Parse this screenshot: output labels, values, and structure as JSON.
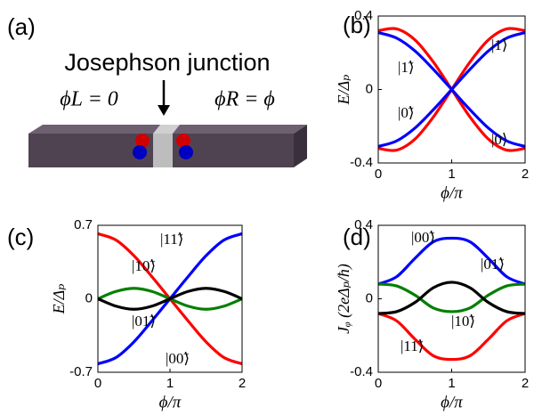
{
  "diagram": {
    "panel_label": "(a)",
    "title": "Josephson junction",
    "left_phase": "ϕL = 0",
    "right_phase": "ϕR = ϕ"
  },
  "chart_data": [
    {
      "type": "line",
      "panel_label": "(b)",
      "xlabel": "ϕ/π",
      "ylabel": "E/Δₚ",
      "x": [
        0,
        0.25,
        0.5,
        0.75,
        1,
        1.25,
        1.5,
        1.75,
        2
      ],
      "xlim": [
        0,
        2
      ],
      "xticks": [
        0,
        1,
        2
      ],
      "ylim": [
        -0.4,
        0.4
      ],
      "yticks": [
        -0.4,
        0,
        0.4
      ],
      "series": [
        {
          "color": "#ff0000",
          "values": [
            0.32,
            0.33,
            0.27,
            0.15,
            0,
            -0.15,
            -0.27,
            -0.33,
            -0.32
          ]
        },
        {
          "color": "#ff0000",
          "values": [
            -0.32,
            -0.33,
            -0.27,
            -0.15,
            0,
            0.15,
            0.27,
            0.33,
            0.32
          ]
        },
        {
          "color": "#0000ff",
          "values": [
            0.31,
            0.28,
            0.21,
            0.11,
            0,
            -0.11,
            -0.21,
            -0.28,
            -0.31
          ]
        },
        {
          "color": "#0000ff",
          "values": [
            -0.31,
            -0.28,
            -0.21,
            -0.11,
            0,
            0.11,
            0.21,
            0.28,
            0.31
          ]
        }
      ],
      "annotations": [
        "|1⟩",
        "|1̃⟩",
        "|0̃⟩",
        "|0⟩"
      ]
    },
    {
      "type": "line",
      "panel_label": "(c)",
      "xlabel": "ϕ/π",
      "ylabel": "E/Δₚ",
      "x": [
        0,
        0.25,
        0.5,
        0.75,
        1,
        1.25,
        1.5,
        1.75,
        2
      ],
      "xlim": [
        0,
        2
      ],
      "xticks": [
        0,
        1,
        2
      ],
      "ylim": [
        -0.7,
        0.7
      ],
      "yticks": [
        -0.7,
        0,
        0.7
      ],
      "series": [
        {
          "color": "#ff0000",
          "values": [
            0.62,
            0.56,
            0.41,
            0.21,
            0,
            -0.21,
            -0.41,
            -0.56,
            -0.62
          ]
        },
        {
          "color": "#0000ff",
          "values": [
            -0.62,
            -0.56,
            -0.41,
            -0.21,
            0,
            0.21,
            0.41,
            0.56,
            0.62
          ]
        },
        {
          "color": "#008000",
          "values": [
            0,
            0.07,
            0.1,
            0.07,
            0,
            -0.07,
            -0.1,
            -0.07,
            0
          ]
        },
        {
          "color": "#000000",
          "values": [
            0,
            -0.07,
            -0.1,
            -0.07,
            0,
            0.07,
            0.1,
            0.07,
            0
          ]
        }
      ],
      "annotations": [
        "|11̃⟩",
        "|10̃⟩",
        "|01̃⟩",
        "|00̃⟩"
      ]
    },
    {
      "type": "line",
      "panel_label": "(d)",
      "xlabel": "ϕ/π",
      "ylabel": "Jᵩ (2eΔₚ/ħ)",
      "x": [
        0,
        0.25,
        0.5,
        0.75,
        1,
        1.25,
        1.5,
        1.75,
        2
      ],
      "xlim": [
        0,
        2
      ],
      "xticks": [
        0,
        1,
        2
      ],
      "ylim": [
        -0.4,
        0.4
      ],
      "yticks": [
        -0.4,
        0,
        0.4
      ],
      "series": [
        {
          "color": "#0000ff",
          "values": [
            0.08,
            0.12,
            0.22,
            0.31,
            0.33,
            0.31,
            0.22,
            0.12,
            0.08
          ]
        },
        {
          "color": "#ff0000",
          "values": [
            -0.08,
            -0.12,
            -0.22,
            -0.31,
            -0.33,
            -0.31,
            -0.22,
            -0.12,
            -0.08
          ]
        },
        {
          "color": "#008000",
          "values": [
            0.08,
            0.07,
            0.02,
            -0.05,
            -0.07,
            -0.05,
            0.02,
            0.07,
            0.08
          ]
        },
        {
          "color": "#000000",
          "values": [
            -0.08,
            -0.07,
            -0.02,
            0.06,
            0.09,
            0.06,
            -0.02,
            -0.07,
            -0.08
          ]
        }
      ],
      "annotations": [
        "|00̃⟩",
        "|01̃⟩",
        "|10̃⟩",
        "|11̃⟩"
      ]
    }
  ]
}
